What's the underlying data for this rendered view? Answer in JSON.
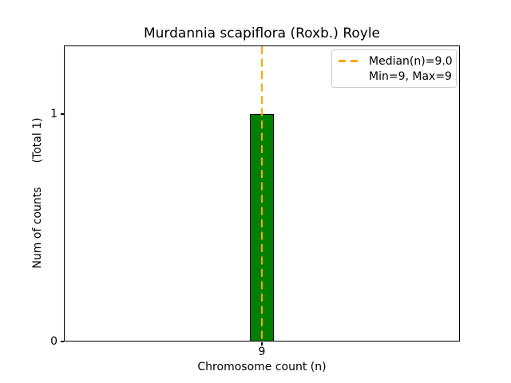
{
  "chart_data": {
    "type": "bar",
    "title": "Murdannia scapiflora (Roxb.) Royle",
    "xlabel": "Chromosome count (n)",
    "ylabel": "Num of counts      (Total 1)",
    "ylabel_main": "Num of counts",
    "ylabel_total": "(Total 1)",
    "categories": [
      9
    ],
    "values": [
      1
    ],
    "total_counts": 1,
    "xticks": [
      "9"
    ],
    "yticks": [
      "0",
      "1"
    ],
    "ylim": [
      0,
      1.3
    ],
    "grid": false,
    "bar_color": "#008000",
    "bar_edge_color": "#000000",
    "median_line": {
      "value": 9.0,
      "color": "#FFA500",
      "style": "dashed",
      "orientation": "vertical"
    },
    "stats": {
      "median": 9.0,
      "min": 9,
      "max": 9
    },
    "legend": {
      "position": "upper right",
      "entries": [
        {
          "label": "Median(n)=9.0",
          "marker": "dashed-line",
          "color": "#FFA500"
        },
        {
          "label": "Min=9, Max=9",
          "marker": "none"
        }
      ]
    }
  }
}
